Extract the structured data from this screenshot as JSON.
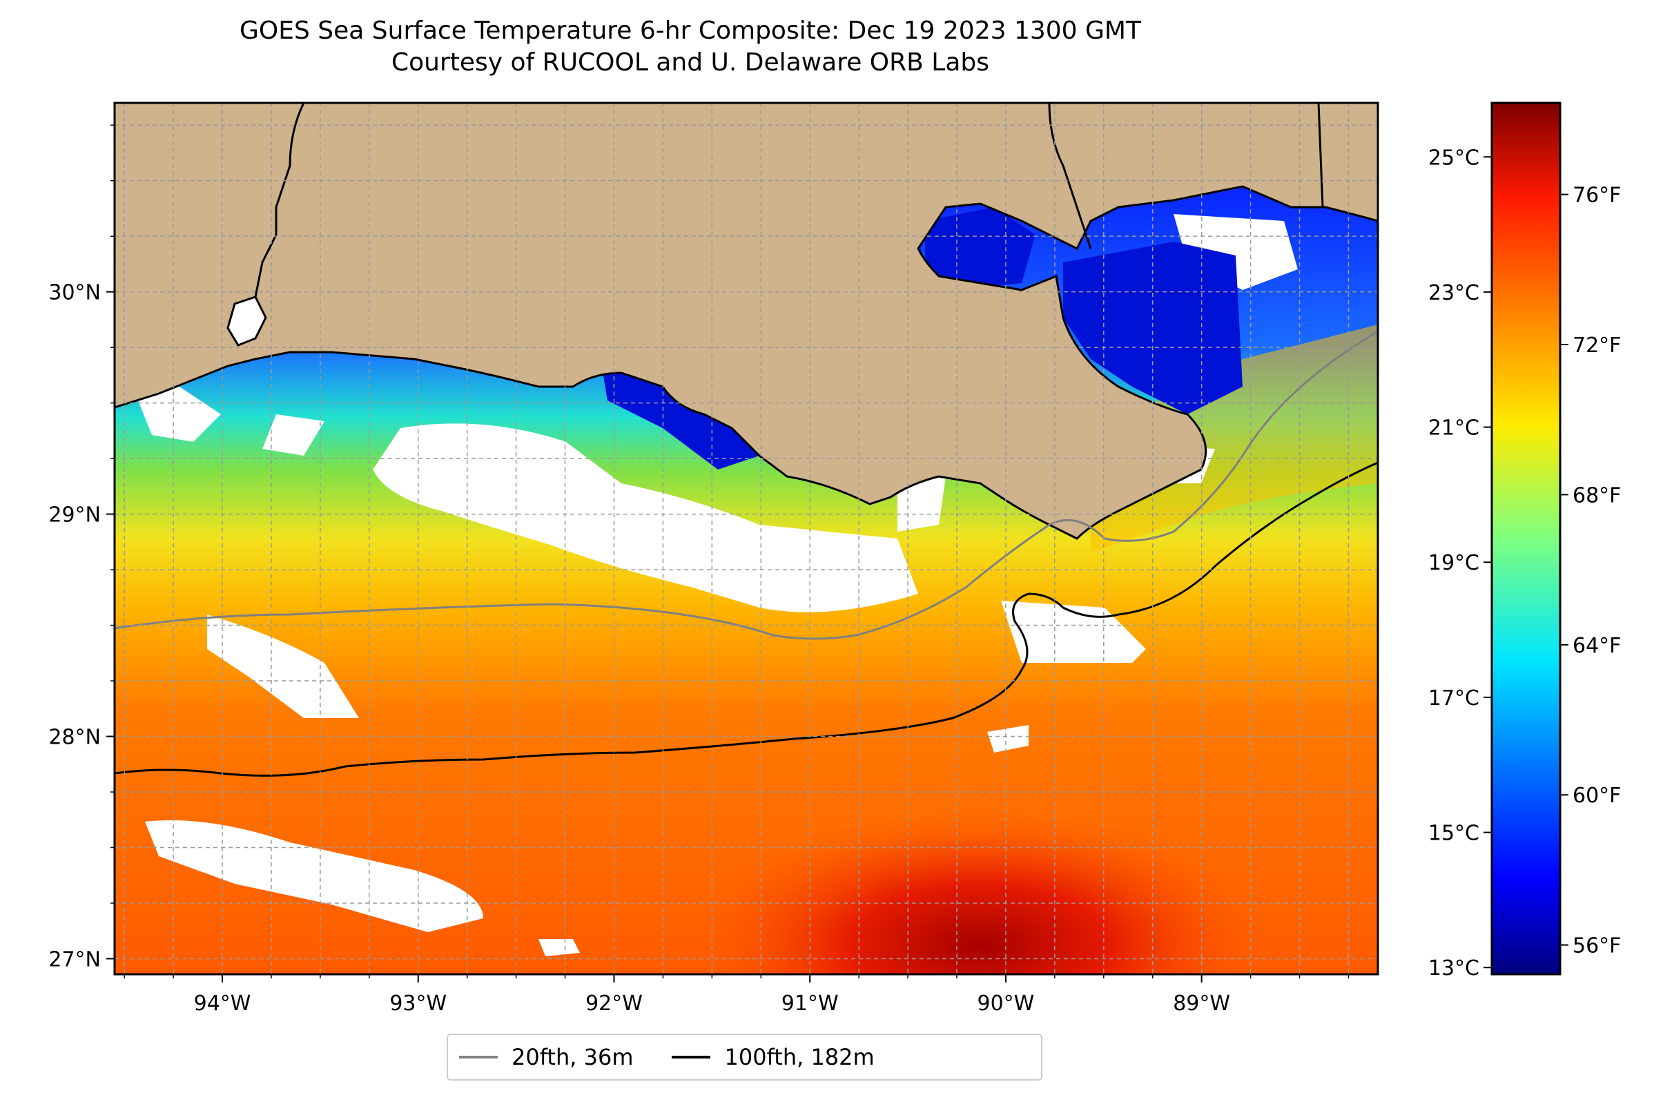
{
  "title": {
    "line1": "GOES Sea Surface Temperature 6-hr Composite: Dec 19 2023 1300 GMT",
    "line2": "Courtesy of RUCOOL and U. Delaware ORB Labs"
  },
  "map": {
    "lon_range": [
      -94.55,
      -88.1
    ],
    "lat_range": [
      26.93,
      30.85
    ],
    "lon_ticks": [
      {
        "value": -94,
        "label": "94°W"
      },
      {
        "value": -93,
        "label": "93°W"
      },
      {
        "value": -92,
        "label": "92°W"
      },
      {
        "value": -91,
        "label": "91°W"
      },
      {
        "value": -90,
        "label": "90°W"
      },
      {
        "value": -89,
        "label": "89°W"
      }
    ],
    "lat_ticks": [
      {
        "value": 30,
        "label": "30°N"
      },
      {
        "value": 29,
        "label": "29°N"
      },
      {
        "value": 28,
        "label": "28°N"
      },
      {
        "value": 27,
        "label": "27°N"
      }
    ],
    "grid": true,
    "land_color": "#cfb38d",
    "cloud_color": "#ffffff"
  },
  "colorbar": {
    "colormap": "jet",
    "range_c": [
      12.9,
      25.8
    ],
    "celsius_ticks": [
      {
        "value": 25,
        "label": "25°C"
      },
      {
        "value": 23,
        "label": "23°C"
      },
      {
        "value": 21,
        "label": "21°C"
      },
      {
        "value": 19,
        "label": "19°C"
      },
      {
        "value": 17,
        "label": "17°C"
      },
      {
        "value": 15,
        "label": "15°C"
      },
      {
        "value": 13,
        "label": "13°C"
      }
    ],
    "fahrenheit_ticks": [
      {
        "value": 76,
        "label": "76°F"
      },
      {
        "value": 72,
        "label": "72°F"
      },
      {
        "value": 68,
        "label": "68°F"
      },
      {
        "value": 64,
        "label": "64°F"
      },
      {
        "value": 60,
        "label": "60°F"
      },
      {
        "value": 56,
        "label": "56°F"
      }
    ]
  },
  "legend": {
    "items": [
      {
        "label": "20fth, 36m",
        "color": "#808080"
      },
      {
        "label": "100fth, 182m",
        "color": "#000000"
      }
    ]
  }
}
